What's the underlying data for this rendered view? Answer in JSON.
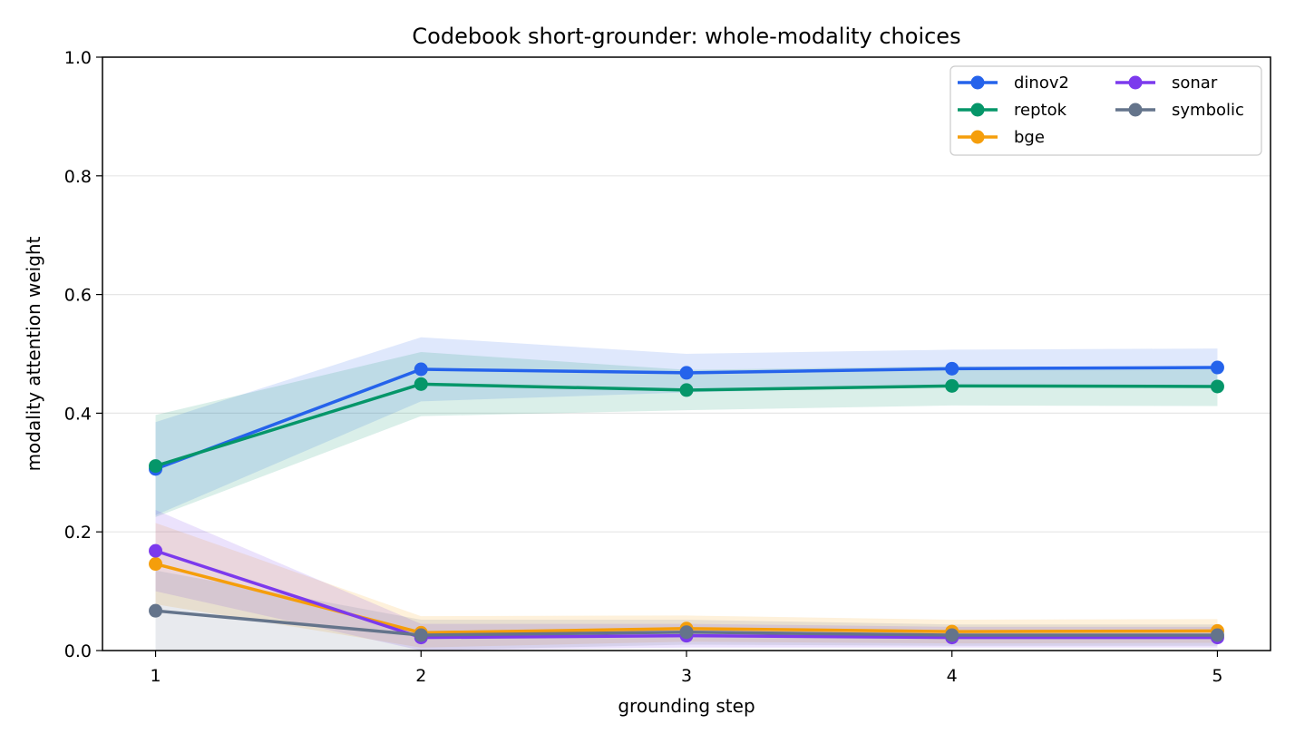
{
  "chart_data": {
    "type": "line",
    "title": "Codebook short-grounder: whole-modality choices",
    "xlabel": "grounding step",
    "ylabel": "modality attention weight",
    "x": [
      1,
      2,
      3,
      4,
      5
    ],
    "x_ticks": [
      "1",
      "2",
      "3",
      "4",
      "5"
    ],
    "xlim": [
      0.8,
      5.2
    ],
    "ylim": [
      0.0,
      1.0
    ],
    "y_ticks": [
      "0.0",
      "0.2",
      "0.4",
      "0.6",
      "0.8",
      "1.0"
    ],
    "grid": "horizontal",
    "legend_position": "top-right",
    "legend_columns": 2,
    "series": [
      {
        "name": "dinov2",
        "color": "#2563eb",
        "values": [
          0.306,
          0.474,
          0.468,
          0.475,
          0.477
        ],
        "lower": [
          0.228,
          0.42,
          0.435,
          0.445,
          0.447
        ],
        "upper": [
          0.385,
          0.528,
          0.5,
          0.507,
          0.509
        ]
      },
      {
        "name": "reptok",
        "color": "#059669",
        "values": [
          0.311,
          0.449,
          0.439,
          0.446,
          0.445
        ],
        "lower": [
          0.225,
          0.395,
          0.405,
          0.413,
          0.412
        ],
        "upper": [
          0.397,
          0.503,
          0.473,
          0.479,
          0.478
        ]
      },
      {
        "name": "bge",
        "color": "#f59e0b",
        "values": [
          0.146,
          0.03,
          0.037,
          0.032,
          0.033
        ],
        "lower": [
          0.078,
          0.005,
          0.015,
          0.012,
          0.013
        ],
        "upper": [
          0.215,
          0.058,
          0.059,
          0.052,
          0.053
        ]
      },
      {
        "name": "sonar",
        "color": "#7c3aed",
        "values": [
          0.168,
          0.022,
          0.025,
          0.022,
          0.022
        ],
        "lower": [
          0.1,
          0.0,
          0.005,
          0.005,
          0.005
        ],
        "upper": [
          0.237,
          0.045,
          0.045,
          0.04,
          0.04
        ]
      },
      {
        "name": "symbolic",
        "color": "#64748b",
        "values": [
          0.067,
          0.026,
          0.031,
          0.026,
          0.026
        ],
        "lower": [
          0.0,
          0.0,
          0.01,
          0.008,
          0.008
        ],
        "upper": [
          0.135,
          0.052,
          0.052,
          0.044,
          0.044
        ]
      }
    ],
    "legend_order": [
      "dinov2",
      "sonar",
      "reptok",
      "symbolic",
      "bge"
    ]
  }
}
